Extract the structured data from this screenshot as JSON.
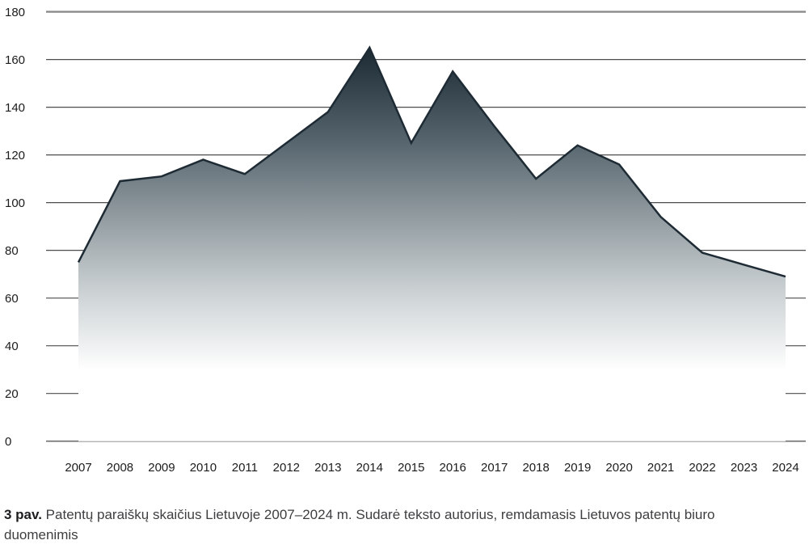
{
  "caption": {
    "label": "3 pav.",
    "line1": "Patentų paraiškų skaičius Lietuvoje 2007–2024 m. Sudarė teksto autorius, remdamasis Lietuvos patentų biuro",
    "line2": "duomenimis"
  },
  "chart_data": {
    "type": "area",
    "title": "Patentų paraiškų skaičius Lietuvoje 2007–2024 m.",
    "x": [
      "2007",
      "2008",
      "2009",
      "2010",
      "2011",
      "2012",
      "2013",
      "2014",
      "2015",
      "2016",
      "2017",
      "2018",
      "2019",
      "2020",
      "2021",
      "2022",
      "2023",
      "2024"
    ],
    "values": [
      75,
      109,
      111,
      118,
      112,
      125,
      138,
      165,
      125,
      155,
      132,
      110,
      124,
      116,
      94,
      79,
      74,
      69
    ],
    "ylim": [
      0,
      180
    ],
    "ytick_step": 20,
    "yticks": [
      0,
      20,
      40,
      60,
      80,
      100,
      120,
      140,
      160,
      180
    ],
    "grid": true,
    "legend_position": "none",
    "xlabel": "",
    "ylabel": "",
    "line_color": "#1e2b34",
    "area_gradient": [
      "#1c2a33",
      "#52616a",
      "#8d979c",
      "#ccd2d4",
      "#ffffff"
    ],
    "axis_text_color": "#1c1c1c",
    "gridline_color": "#4d4d4d",
    "top_gridline_color": "#8a8a8a",
    "zero_gridline_color": "#6e6e6e"
  }
}
